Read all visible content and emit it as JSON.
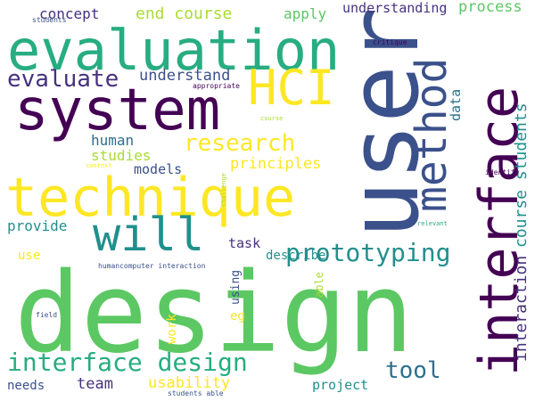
{
  "palette": {
    "dark_purple": "#440154",
    "purple": "#46327e",
    "indigo": "#3b518b",
    "blue": "#2c718e",
    "teal": "#21908d",
    "green_teal": "#27ad81",
    "green": "#5cc863",
    "light_green": "#aadc32",
    "yellow": "#fde725"
  },
  "words": [
    {
      "id": "design",
      "text": "design",
      "color": "#5cc863"
    },
    {
      "id": "user",
      "text": "user",
      "color": "#3b518b"
    },
    {
      "id": "interface",
      "text": "interface",
      "color": "#440154"
    },
    {
      "id": "technique",
      "text": "technique",
      "color": "#fde725"
    },
    {
      "id": "evaluation",
      "text": "evaluation",
      "color": "#27ad81"
    },
    {
      "id": "system",
      "text": "system",
      "color": "#440154"
    },
    {
      "id": "hci",
      "text": "HCI",
      "color": "#fde725"
    },
    {
      "id": "method",
      "text": "method",
      "color": "#3b518b"
    },
    {
      "id": "will",
      "text": "will",
      "color": "#21908d"
    },
    {
      "id": "interface-design",
      "text": "interface design",
      "color": "#27ad81"
    },
    {
      "id": "prototyping",
      "text": "prototyping",
      "color": "#21908d"
    },
    {
      "id": "research",
      "text": "research",
      "color": "#fde725"
    },
    {
      "id": "evaluate",
      "text": "evaluate",
      "color": "#46327e"
    },
    {
      "id": "tool",
      "text": "tool",
      "color": "#2c718e"
    },
    {
      "id": "course-students",
      "text": "course students",
      "color": "#21908d"
    },
    {
      "id": "interaction",
      "text": "interaction",
      "color": "#46327e"
    },
    {
      "id": "end-course",
      "text": "end course",
      "color": "#aadc32"
    },
    {
      "id": "principles",
      "text": "principles",
      "color": "#fde725"
    },
    {
      "id": "understand",
      "text": "understand",
      "color": "#3b518b"
    },
    {
      "id": "human",
      "text": "human",
      "color": "#2c718e"
    },
    {
      "id": "studies",
      "text": "studies",
      "color": "#aadc32"
    },
    {
      "id": "usability",
      "text": "usability",
      "color": "#fde725"
    },
    {
      "id": "team",
      "text": "team",
      "color": "#46327e"
    },
    {
      "id": "concept",
      "text": "concept",
      "color": "#46327e"
    },
    {
      "id": "apply",
      "text": "apply",
      "color": "#5cc863"
    },
    {
      "id": "understanding",
      "text": "understanding",
      "color": "#46327e"
    },
    {
      "id": "process",
      "text": "process",
      "color": "#5cc863"
    },
    {
      "id": "data",
      "text": "data",
      "color": "#2c718e"
    },
    {
      "id": "provide",
      "text": "provide",
      "color": "#21908d"
    },
    {
      "id": "models",
      "text": "models",
      "color": "#3b518b"
    },
    {
      "id": "project",
      "text": "project",
      "color": "#21908d"
    },
    {
      "id": "task",
      "text": "task",
      "color": "#46327e"
    },
    {
      "id": "describe",
      "text": "describe",
      "color": "#21908d"
    },
    {
      "id": "needs",
      "text": "needs",
      "color": "#3b518b"
    },
    {
      "id": "use",
      "text": "use",
      "color": "#fde725"
    },
    {
      "id": "work",
      "text": "work",
      "color": "#fde725"
    },
    {
      "id": "eg",
      "text": "eg",
      "color": "#fde725"
    },
    {
      "id": "using",
      "text": "using",
      "color": "#3b518b"
    },
    {
      "id": "able",
      "text": "able",
      "color": "#aadc32"
    },
    {
      "id": "humancomputer-interaction",
      "text": "humancomputer interaction",
      "color": "#3b518b"
    },
    {
      "id": "critique",
      "text": "critique",
      "color": "#440154"
    },
    {
      "id": "appropriate",
      "text": "appropriate",
      "color": "#440154"
    },
    {
      "id": "students",
      "text": "students",
      "color": "#3b518b"
    },
    {
      "id": "course",
      "text": "course",
      "color": "#aadc32"
    },
    {
      "id": "context",
      "text": "context",
      "color": "#fde725"
    },
    {
      "id": "challenge",
      "text": "challenge",
      "color": "#aadc32"
    },
    {
      "id": "identify",
      "text": "identify",
      "color": "#440154"
    },
    {
      "id": "relevant",
      "text": "relevant",
      "color": "#27ad81"
    },
    {
      "id": "field",
      "text": "field",
      "color": "#3b518b"
    },
    {
      "id": "students-able",
      "text": "students able",
      "color": "#3b518b"
    }
  ]
}
